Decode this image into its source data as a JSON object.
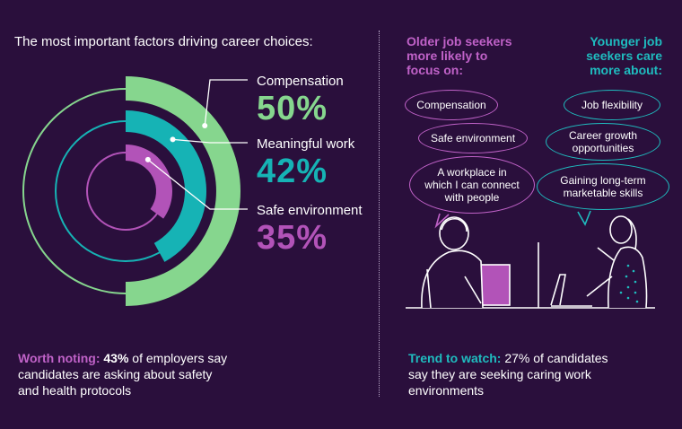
{
  "chart_title": "The most important factors driving career choices:",
  "chart_data": {
    "type": "radial-bar",
    "title": "The most important factors driving career choices:",
    "categories": [
      "Compensation",
      "Meaningful work",
      "Safe environment"
    ],
    "values": [
      50,
      42,
      35
    ],
    "value_labels": [
      "50%",
      "42%",
      "35%"
    ],
    "colors": [
      "#86d68e",
      "#16b3b5",
      "#b253b8"
    ],
    "unit": "%",
    "max": 100
  },
  "factors": [
    {
      "label": "Compensation",
      "pct": "50%",
      "color": "#86d68e"
    },
    {
      "label": "Meaningful work",
      "pct": "42%",
      "color": "#16b3b5"
    },
    {
      "label": "Safe environment",
      "pct": "35%",
      "color": "#b253b8"
    }
  ],
  "worth_noting": {
    "lead": "Worth noting:",
    "bold": "43%",
    "line1_rest": " of employers say",
    "line2": "candidates are asking about safety",
    "line3": "and health protocols",
    "lead_color": "#c062c8"
  },
  "older": {
    "heading_lines": [
      "Older job seekers",
      "more likely to",
      "focus on:"
    ],
    "bubbles": [
      "Compensation",
      "Safe environment",
      "A workplace in which I can connect with people"
    ],
    "color": "#c062c8"
  },
  "younger": {
    "heading_lines": [
      "Younger job",
      "seekers care",
      "more about:"
    ],
    "bubbles": [
      "Job flexibility",
      "Career growth opportunities",
      "Gaining long-term marketable skills"
    ],
    "color": "#1fbcbf"
  },
  "trend": {
    "lead": "Trend to watch:",
    "line1_rest": " 27% of candidates",
    "line2": "say they are seeking caring work",
    "line3": "environments",
    "lead_color": "#1fbcbf"
  },
  "colors": {
    "background": "#2a0f3c",
    "white": "#ffffff"
  }
}
